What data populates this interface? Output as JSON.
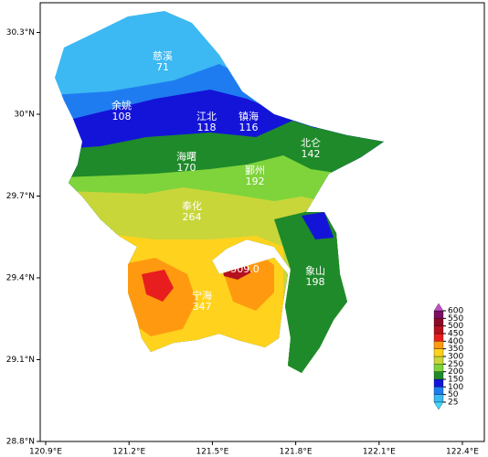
{
  "map": {
    "lat_ticks": [
      {
        "value": 28.8,
        "label": "28.8°N"
      },
      {
        "value": 29.1,
        "label": "29.1°N"
      },
      {
        "value": 29.4,
        "label": "29.4°N"
      },
      {
        "value": 29.7,
        "label": "29.7°N"
      },
      {
        "value": 30,
        "label": "30°N"
      },
      {
        "value": 30.3,
        "label": "30.3°N"
      }
    ],
    "lon_ticks": [
      {
        "value": 120.9,
        "label": "120.9°E"
      },
      {
        "value": 121.2,
        "label": "121.2°E"
      },
      {
        "value": 121.5,
        "label": "121.5°E"
      },
      {
        "value": 121.8,
        "label": "121.8°E"
      },
      {
        "value": 122.1,
        "label": "122.1°E"
      },
      {
        "value": 122.4,
        "label": "122.4°E"
      }
    ],
    "districts": [
      {
        "name": "慈溪",
        "value": "71"
      },
      {
        "name": "余姚",
        "value": "108"
      },
      {
        "name": "江北",
        "value": "118"
      },
      {
        "name": "镇海",
        "value": "116"
      },
      {
        "name": "北仑",
        "value": "142"
      },
      {
        "name": "海曙",
        "value": "170"
      },
      {
        "name": "鄞州",
        "value": "192"
      },
      {
        "name": "奉化",
        "value": "264"
      },
      {
        "name": "象山",
        "value": "198"
      },
      {
        "name": "宁海",
        "value": "347"
      }
    ],
    "max_label": "509.0",
    "colorbar": {
      "levels": [
        {
          "value": 25,
          "label": "25"
        },
        {
          "value": 50,
          "label": "50"
        },
        {
          "value": 100,
          "label": "100"
        },
        {
          "value": 150,
          "label": "150"
        },
        {
          "value": 200,
          "label": "200"
        },
        {
          "value": 250,
          "label": "250"
        },
        {
          "value": 300,
          "label": "300"
        },
        {
          "value": 350,
          "label": "350"
        },
        {
          "value": 400,
          "label": "400"
        },
        {
          "value": 450,
          "label": "450"
        },
        {
          "value": 500,
          "label": "500"
        },
        {
          "value": 550,
          "label": "550"
        },
        {
          "value": 600,
          "label": "600"
        }
      ],
      "colors": [
        "#3cb8f2",
        "#1e7cf0",
        "#1414d8",
        "#1f8a2a",
        "#7ed43a",
        "#c8d63a",
        "#ffd21e",
        "#ff9a10",
        "#e81e1e",
        "#b4101e",
        "#8c0a28",
        "#7a1060"
      ],
      "under": "#40d8ff",
      "over": "#c050c8"
    }
  }
}
